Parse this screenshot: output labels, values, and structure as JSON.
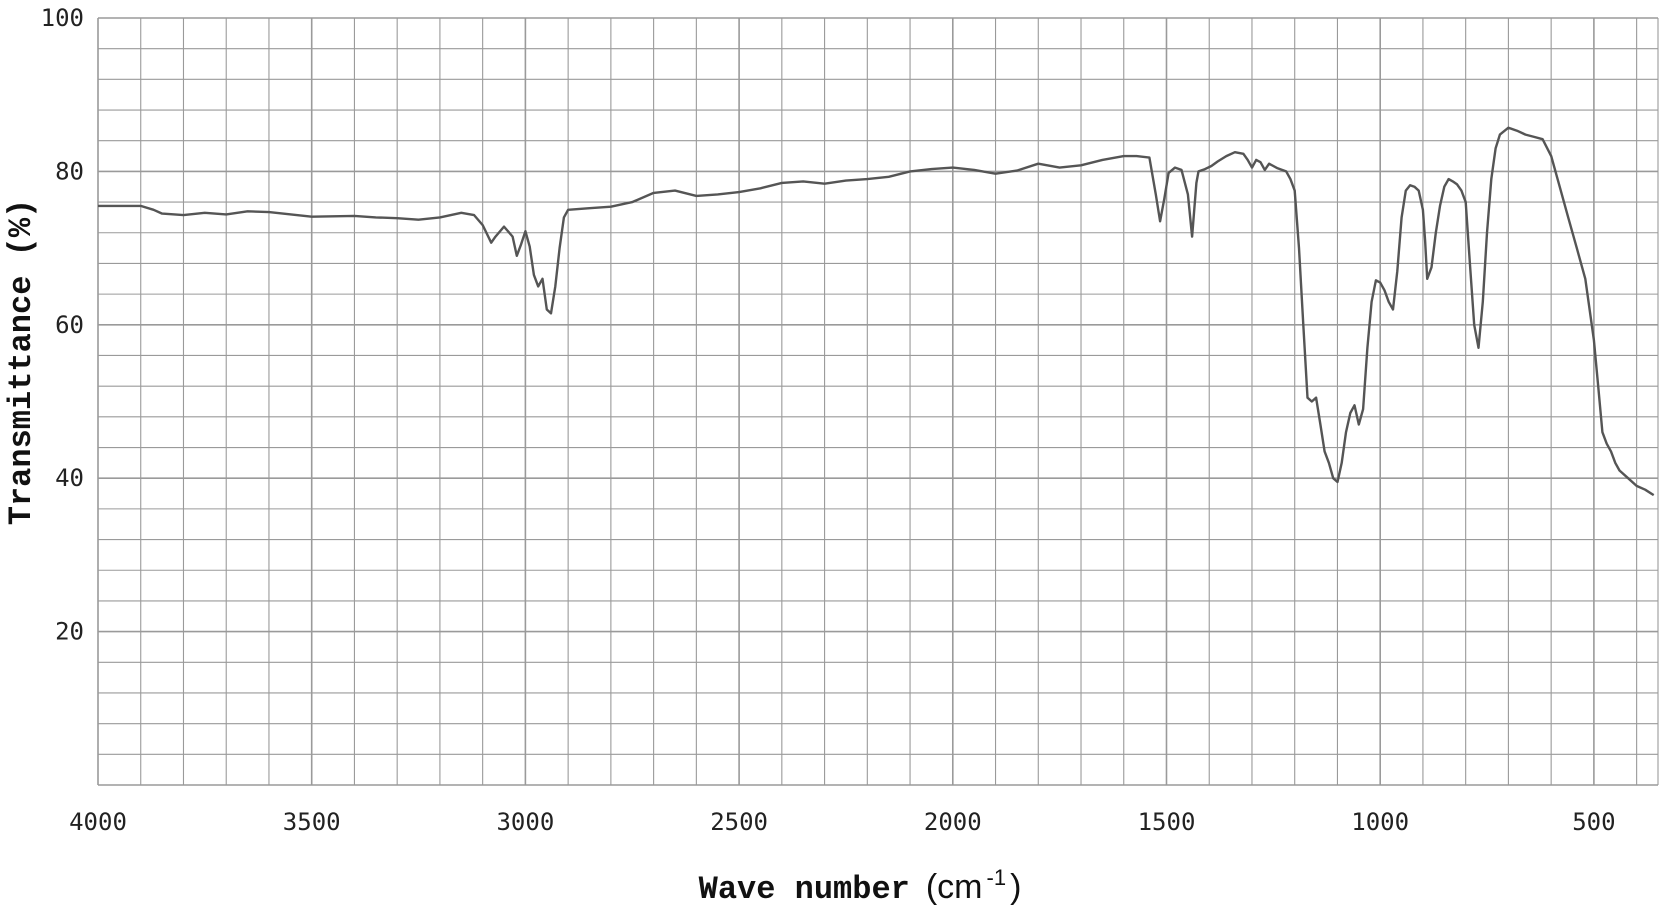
{
  "chart_data": {
    "type": "line",
    "xlabel_main": "Wave number",
    "xlabel_unit": "(cm",
    "xlabel_unit_exp": "-1",
    "xlabel_unit_close": ")",
    "ylabel": "Transmittance (%)",
    "xlim": [
      4000,
      350
    ],
    "ylim": [
      0,
      100
    ],
    "x_reversed": true,
    "grid": true,
    "x_ticks": [
      4000,
      3500,
      3000,
      2500,
      2000,
      1500,
      1000,
      500
    ],
    "x_tick_labels": [
      "4000",
      "3500",
      "3000",
      "2500",
      "2000",
      "1500",
      "1000",
      "500"
    ],
    "y_ticks": [
      20,
      40,
      60,
      80,
      100
    ],
    "y_tick_labels": [
      "20",
      "40",
      "60",
      "80",
      "100"
    ],
    "line_color": "#555555",
    "grid_color": "#9a9a9a",
    "series": [
      {
        "x": [
          4000,
          3900,
          3870,
          3850,
          3800,
          3750,
          3700,
          3650,
          3600,
          3500,
          3400,
          3350,
          3300,
          3250,
          3200,
          3150,
          3120,
          3100,
          3080,
          3070,
          3050,
          3030,
          3020,
          3010,
          3000,
          2990,
          2980,
          2970,
          2960,
          2950,
          2940,
          2930,
          2920,
          2910,
          2900,
          2850,
          2800,
          2750,
          2700,
          2650,
          2600,
          2550,
          2500,
          2450,
          2400,
          2350,
          2300,
          2250,
          2200,
          2150,
          2100,
          2050,
          2000,
          1950,
          1900,
          1850,
          1800,
          1750,
          1700,
          1650,
          1600,
          1570,
          1540,
          1525,
          1515,
          1505,
          1495,
          1480,
          1465,
          1450,
          1440,
          1430,
          1425,
          1410,
          1395,
          1380,
          1360,
          1340,
          1320,
          1310,
          1300,
          1290,
          1280,
          1270,
          1260,
          1240,
          1220,
          1210,
          1200,
          1190,
          1180,
          1170,
          1160,
          1150,
          1140,
          1130,
          1120,
          1110,
          1100,
          1090,
          1080,
          1070,
          1060,
          1050,
          1040,
          1030,
          1020,
          1010,
          1000,
          990,
          980,
          970,
          960,
          950,
          940,
          930,
          920,
          910,
          900,
          895,
          890,
          880,
          870,
          860,
          850,
          840,
          830,
          820,
          810,
          800,
          790,
          780,
          770,
          760,
          750,
          740,
          730,
          720,
          700,
          680,
          660,
          640,
          620,
          600,
          580,
          560,
          540,
          520,
          500,
          490,
          480,
          470,
          460,
          450,
          440,
          420,
          400,
          380,
          360
        ],
        "y": [
          75.5,
          75.5,
          75,
          74.5,
          74.3,
          74.6,
          74.4,
          74.8,
          74.7,
          74.1,
          74.2,
          74.0,
          73.9,
          73.7,
          74.0,
          74.6,
          74.3,
          73.0,
          70.7,
          71.5,
          72.8,
          71.5,
          69.0,
          70.5,
          72.2,
          70.2,
          66.5,
          65.0,
          66.0,
          62.0,
          61.5,
          65.0,
          70.0,
          74.0,
          75.0,
          75.2,
          75.4,
          76.0,
          77.2,
          77.5,
          76.8,
          77.0,
          77.3,
          77.8,
          78.5,
          78.7,
          78.4,
          78.8,
          79.0,
          79.3,
          80.0,
          80.3,
          80.5,
          80.2,
          79.7,
          80.1,
          81.0,
          80.5,
          80.8,
          81.5,
          82.0,
          82.0,
          81.8,
          77.0,
          73.5,
          76.5,
          79.8,
          80.5,
          80.2,
          77.0,
          71.5,
          78.5,
          80.0,
          80.3,
          80.7,
          81.3,
          82.0,
          82.5,
          82.3,
          81.5,
          80.5,
          81.5,
          81.2,
          80.2,
          81.0,
          80.4,
          80.0,
          79.0,
          77.5,
          70.0,
          60.0,
          50.5,
          50.0,
          50.5,
          47.0,
          43.5,
          42.0,
          40.0,
          39.5,
          42.0,
          46.0,
          48.5,
          49.5,
          47.0,
          49.0,
          57.0,
          63.0,
          65.8,
          65.5,
          64.5,
          63.0,
          62.0,
          67.0,
          74.0,
          77.5,
          78.2,
          78.0,
          77.5,
          75.0,
          71.0,
          66.0,
          67.5,
          72.0,
          75.5,
          78.0,
          79.0,
          78.7,
          78.3,
          77.5,
          76.0,
          68.0,
          60.0,
          57.0,
          63.0,
          72.0,
          79.0,
          83.0,
          84.8,
          85.7,
          85.3,
          84.8,
          84.5,
          84.2,
          82.0,
          78.0,
          74.0,
          70.0,
          66.0,
          58.0,
          52.0,
          46.0,
          44.5,
          43.5,
          42.0,
          41.0,
          40.0,
          39.0,
          38.5,
          37.8
        ]
      }
    ]
  }
}
